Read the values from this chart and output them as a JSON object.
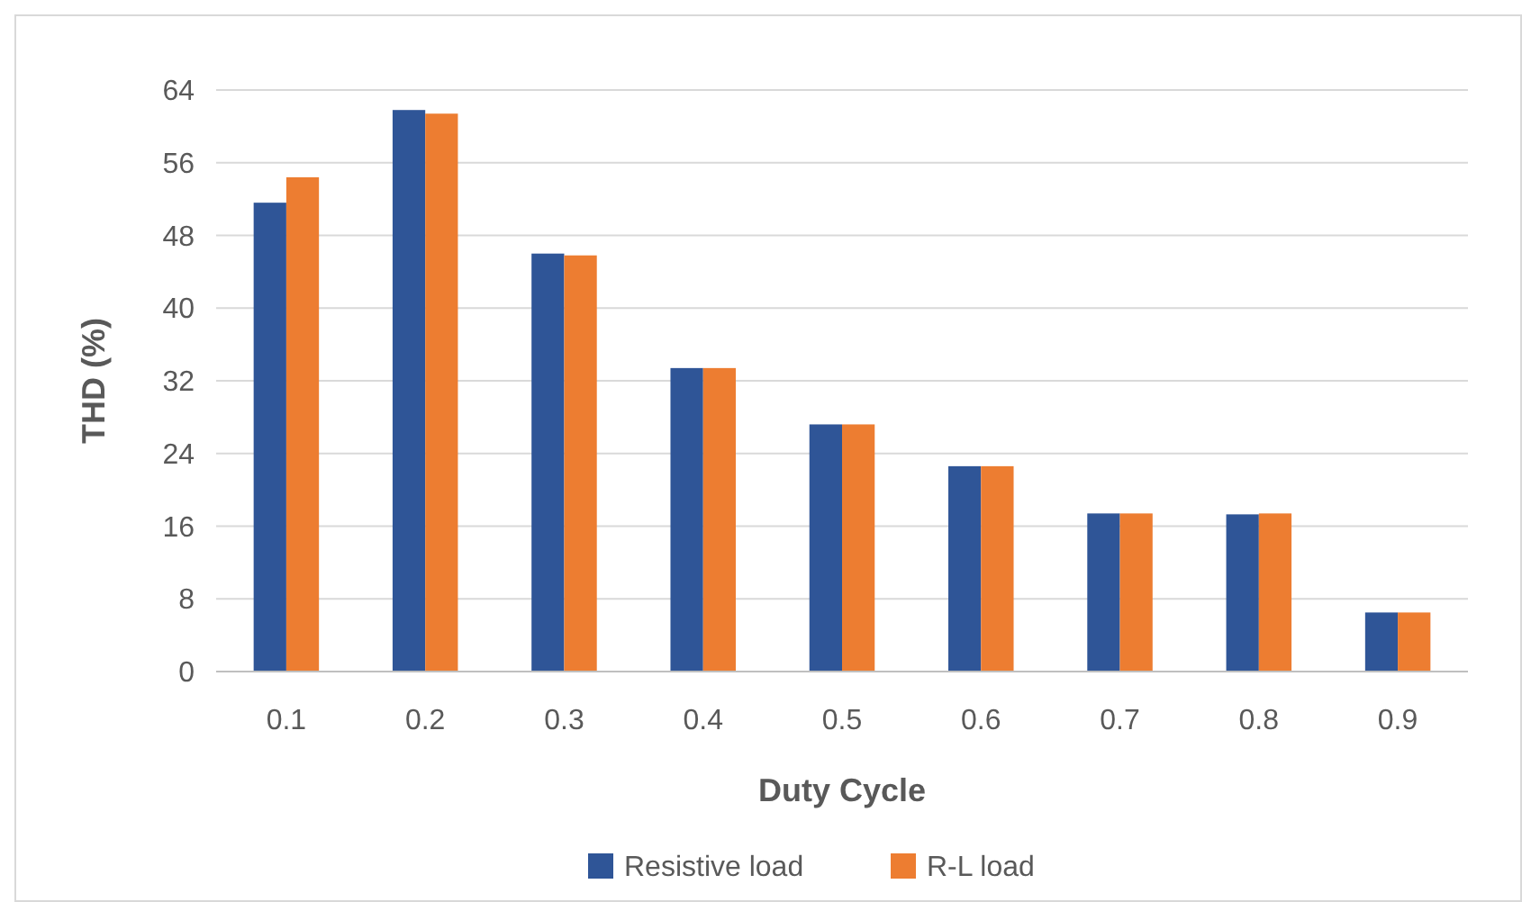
{
  "chart_data": {
    "type": "bar",
    "xlabel": "Duty Cycle",
    "ylabel": "THD (%)",
    "categories": [
      "0.1",
      "0.2",
      "0.3",
      "0.4",
      "0.5",
      "0.6",
      "0.7",
      "0.8",
      "0.9"
    ],
    "series": [
      {
        "name": "Resistive load",
        "color": "#2f5597",
        "values": [
          51.6,
          61.8,
          46.0,
          33.4,
          27.2,
          22.6,
          17.4,
          17.3,
          6.5
        ]
      },
      {
        "name": "R-L load",
        "color": "#ed7d31",
        "values": [
          54.4,
          61.4,
          45.8,
          33.4,
          27.2,
          22.6,
          17.4,
          17.4,
          6.5
        ]
      }
    ],
    "ylim": [
      0,
      64
    ],
    "yticks": [
      0,
      8,
      16,
      24,
      32,
      40,
      48,
      56,
      64
    ],
    "grid": "y",
    "legend": "bottom"
  }
}
